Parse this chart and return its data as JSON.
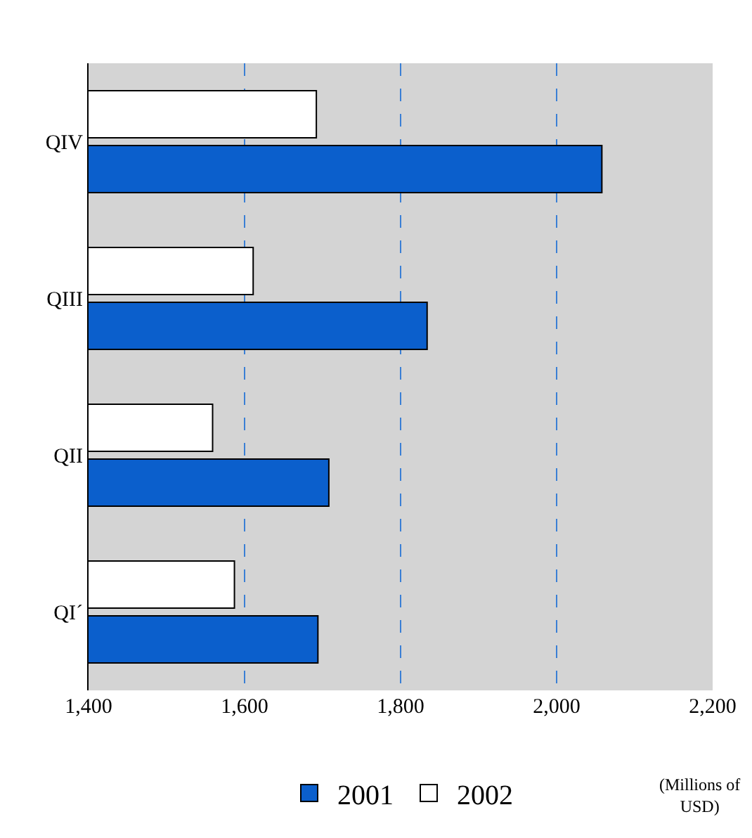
{
  "chart_data": {
    "type": "bar",
    "orientation": "horizontal",
    "categories": [
      "QIV",
      "QIII",
      "QII",
      "QI´"
    ],
    "series": [
      {
        "name": "2001",
        "color": "#0b5fcc",
        "values": [
          2058,
          1834,
          1708,
          1694
        ]
      },
      {
        "name": "2002",
        "color": "#ffffff",
        "values": [
          1692,
          1611,
          1559,
          1587
        ]
      }
    ],
    "xlim": [
      1400,
      2200
    ],
    "xticks": [
      {
        "value": 1400,
        "label": "1,400"
      },
      {
        "value": 1600,
        "label": "1,600"
      },
      {
        "value": 1800,
        "label": "1,800"
      },
      {
        "value": 2000,
        "label": "2,000"
      },
      {
        "value": 2200,
        "label": "2,200"
      }
    ],
    "xlabel": "(Millions of USD)",
    "grid": "x",
    "legend": "bottom"
  }
}
